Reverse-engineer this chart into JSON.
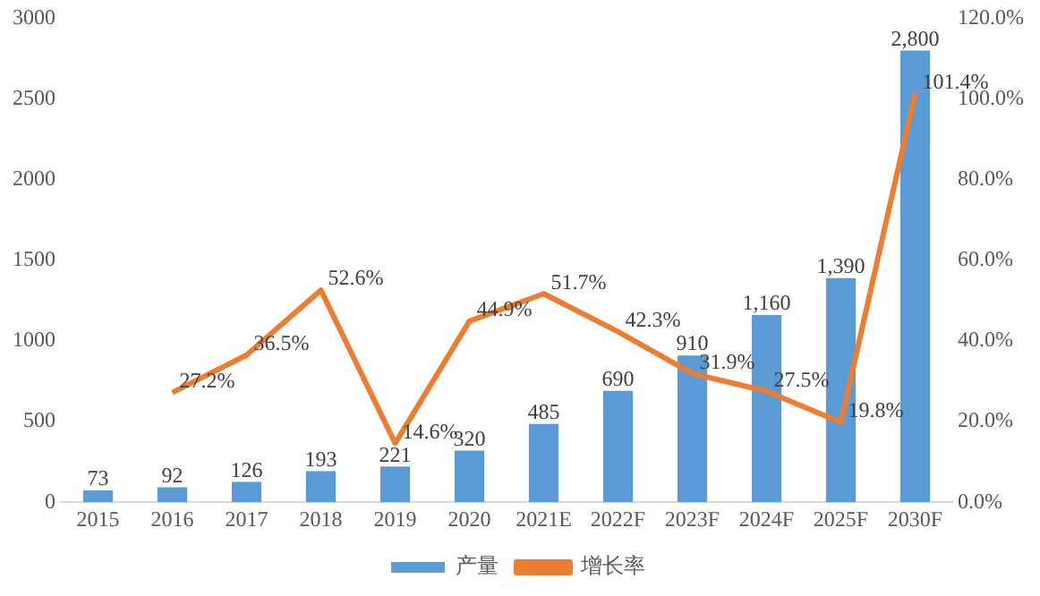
{
  "chart_data": {
    "type": "bar",
    "categories": [
      "2015",
      "2016",
      "2017",
      "2018",
      "2019",
      "2020",
      "2021E",
      "2022F",
      "2023F",
      "2024F",
      "2025F",
      "2030F"
    ],
    "series": [
      {
        "name": "产量",
        "color": "#5b9bd5",
        "values": [
          73,
          92,
          126,
          193,
          221,
          320,
          485,
          690,
          910,
          1160,
          1390,
          2800
        ],
        "value_labels": [
          "73",
          "92",
          "126",
          "193",
          "221",
          "320",
          "485",
          "690",
          "910",
          "1,160",
          "1,390",
          "2,800"
        ]
      },
      {
        "name": "增长率",
        "type": "line",
        "axis": "y2",
        "color": "#ed7d31",
        "values": [
          null,
          27.2,
          36.5,
          52.6,
          14.6,
          44.9,
          51.7,
          42.3,
          31.9,
          27.5,
          19.8,
          101.4
        ],
        "value_labels": [
          null,
          "27.2%",
          "36.5%",
          "52.6%",
          "14.6%",
          "44.9%",
          "51.7%",
          "42.3%",
          "31.9%",
          "27.5%",
          "19.8%",
          "101.4%"
        ]
      }
    ],
    "ylim": [
      0,
      3000
    ],
    "yticks": [
      0,
      500,
      1000,
      1500,
      2000,
      2500,
      3000
    ],
    "y2lim": [
      0,
      120
    ],
    "y2ticks": [
      {
        "value": 0,
        "label": "0.0%"
      },
      {
        "value": 20,
        "label": "20.0%"
      },
      {
        "value": 40,
        "label": "40.0%"
      },
      {
        "value": 60,
        "label": "60.0%"
      },
      {
        "value": 80,
        "label": "80.0%"
      },
      {
        "value": 100,
        "label": "100.0%"
      },
      {
        "value": 120,
        "label": "120.0%"
      }
    ],
    "grid": false,
    "legend": "bottom",
    "marker": "none"
  }
}
